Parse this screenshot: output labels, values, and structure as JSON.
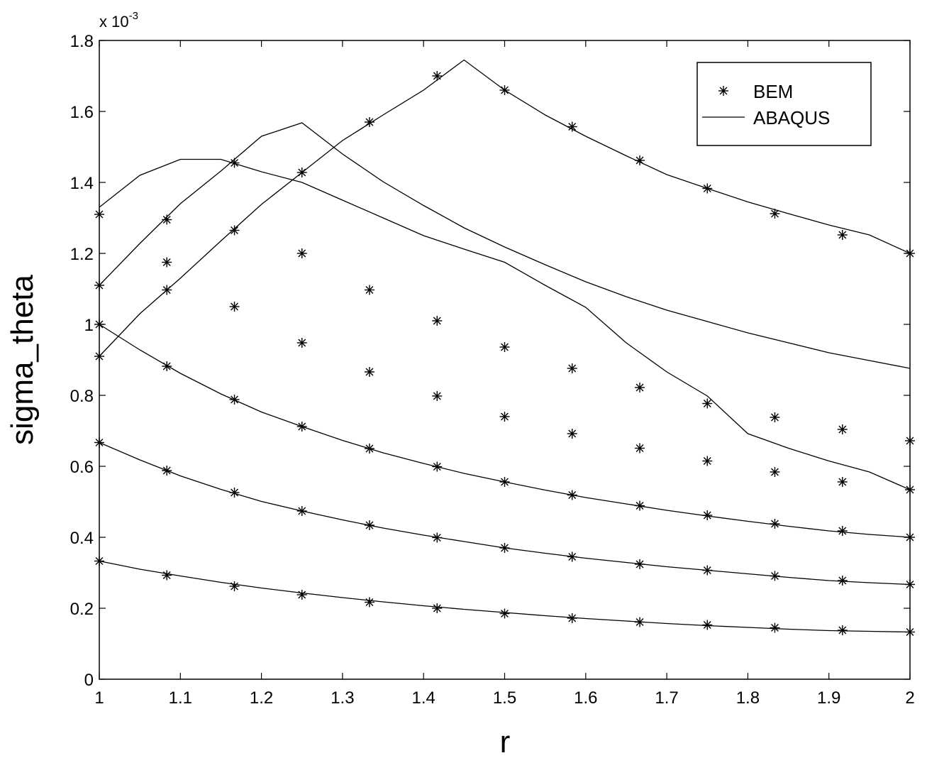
{
  "chart_data": {
    "type": "line",
    "xlabel": "r",
    "ylabel": "sigma_theta",
    "y_exponent_label": "x 10",
    "y_exponent_power": "-3",
    "xlim": [
      1,
      2
    ],
    "ylim": [
      0,
      1.8
    ],
    "x_ticks": [
      1,
      1.1,
      1.2,
      1.3,
      1.4,
      1.5,
      1.6,
      1.7,
      1.8,
      1.9,
      2
    ],
    "x_tick_labels": [
      "1",
      "1.1",
      "1.2",
      "1.3",
      "1.4",
      "1.5",
      "1.6",
      "1.7",
      "1.8",
      "1.9",
      "2"
    ],
    "y_ticks": [
      0,
      0.2,
      0.4,
      0.6,
      0.8,
      1,
      1.2,
      1.4,
      1.6,
      1.8
    ],
    "y_tick_labels": [
      "0",
      "0.2",
      "0.4",
      "0.6",
      "0.8",
      "1",
      "1.2",
      "1.4",
      "1.6",
      "1.8"
    ],
    "grid": false,
    "legend": {
      "position": "top-right",
      "entries": [
        {
          "label": "BEM",
          "style": "asterisk-marker"
        },
        {
          "label": "ABAQUS",
          "style": "solid-line"
        }
      ]
    },
    "bem_x": [
      1,
      1.0833,
      1.1667,
      1.25,
      1.3333,
      1.4167,
      1.5,
      1.5833,
      1.6667,
      1.75,
      1.8333,
      1.9167,
      2
    ],
    "curves": [
      {
        "bem": [
          0.333,
          0.293,
          0.262,
          0.238,
          0.217,
          0.2,
          0.185,
          0.172,
          0.161,
          0.153,
          0.145,
          0.138,
          0.133
        ],
        "abaqus": {
          "x": [
            1,
            1.05,
            1.1,
            1.15,
            1.2,
            1.25,
            1.3,
            1.35,
            1.4,
            1.45,
            1.5,
            1.55,
            1.6,
            1.65,
            1.7,
            1.75,
            1.8,
            1.85,
            1.9,
            1.95,
            2
          ],
          "y": [
            0.333,
            0.31,
            0.291,
            0.273,
            0.257,
            0.243,
            0.23,
            0.218,
            0.207,
            0.197,
            0.188,
            0.179,
            0.171,
            0.164,
            0.157,
            0.151,
            0.146,
            0.141,
            0.137,
            0.135,
            0.133
          ]
        }
      },
      {
        "bem": [
          0.667,
          0.588,
          0.526,
          0.474,
          0.434,
          0.399,
          0.37,
          0.345,
          0.324,
          0.307,
          0.291,
          0.278,
          0.267
        ],
        "abaqus": {
          "x": [
            1,
            1.05,
            1.1,
            1.15,
            1.2,
            1.25,
            1.3,
            1.35,
            1.4,
            1.45,
            1.5,
            1.55,
            1.6,
            1.65,
            1.7,
            1.75,
            1.8,
            1.85,
            1.9,
            1.95,
            2
          ],
          "y": [
            0.667,
            0.618,
            0.573,
            0.535,
            0.501,
            0.474,
            0.449,
            0.426,
            0.406,
            0.388,
            0.37,
            0.355,
            0.341,
            0.329,
            0.317,
            0.307,
            0.297,
            0.287,
            0.278,
            0.272,
            0.267
          ]
        }
      },
      {
        "bem": [
          1.0,
          0.882,
          0.788,
          0.712,
          0.65,
          0.599,
          0.556,
          0.519,
          0.489,
          0.462,
          0.438,
          0.418,
          0.4
        ],
        "abaqus": {
          "x": [
            1,
            1.05,
            1.1,
            1.15,
            1.2,
            1.25,
            1.3,
            1.35,
            1.4,
            1.45,
            1.5,
            1.55,
            1.6,
            1.65,
            1.7,
            1.75,
            1.8,
            1.85,
            1.9,
            1.95,
            2
          ],
          "y": [
            1.0,
            0.928,
            0.862,
            0.804,
            0.753,
            0.712,
            0.673,
            0.638,
            0.608,
            0.58,
            0.556,
            0.533,
            0.512,
            0.494,
            0.476,
            0.46,
            0.445,
            0.431,
            0.418,
            0.408,
            0.4
          ]
        }
      },
      {
        "bem": [
          1.31,
          1.175,
          1.05,
          0.948,
          0.866,
          0.798,
          0.74,
          0.692,
          0.651,
          0.615,
          0.584,
          0.556,
          0.534
        ],
        "abaqus": {
          "x": [
            1,
            1.05,
            1.1,
            1.15,
            1.2,
            1.25,
            1.3,
            1.35,
            1.4,
            1.45,
            1.5,
            1.55,
            1.6,
            1.65,
            1.7,
            1.75,
            1.8,
            1.85,
            1.9,
            1.95,
            2
          ],
          "y": [
            1.33,
            1.42,
            1.465,
            1.465,
            1.43,
            1.4,
            1.35,
            1.3,
            1.25,
            1.212,
            1.175,
            1.11,
            1.048,
            0.948,
            0.866,
            0.798,
            0.692,
            0.651,
            0.615,
            0.584,
            0.534
          ]
        }
      },
      {
        "bem": [
          1.11,
          1.295,
          1.455,
          1.2,
          1.097,
          1.01,
          0.936,
          0.876,
          0.822,
          0.777,
          0.738,
          0.704,
          0.672
        ],
        "abaqus": {
          "x": [
            1,
            1.05,
            1.1,
            1.15,
            1.2,
            1.25,
            1.3,
            1.35,
            1.4,
            1.45,
            1.5,
            1.55,
            1.6,
            1.65,
            1.7,
            1.75,
            1.8,
            1.85,
            1.9,
            1.95,
            2
          ],
          "y": [
            1.11,
            1.228,
            1.34,
            1.432,
            1.53,
            1.568,
            1.48,
            1.402,
            1.335,
            1.272,
            1.218,
            1.168,
            1.12,
            1.078,
            1.04,
            1.008,
            0.976,
            0.948,
            0.92,
            0.898,
            0.876
          ]
        }
      },
      {
        "bem": [
          0.91,
          1.097,
          1.265,
          1.428,
          1.57,
          1.7,
          1.66,
          1.557,
          1.462,
          1.383,
          1.312,
          1.252,
          1.2
        ],
        "abaqus": {
          "x": [
            1,
            1.05,
            1.1,
            1.15,
            1.2,
            1.25,
            1.3,
            1.35,
            1.4,
            1.45,
            1.5,
            1.55,
            1.6,
            1.65,
            1.7,
            1.75,
            1.8,
            1.85,
            1.9,
            1.95,
            2
          ],
          "y": [
            0.91,
            1.03,
            1.13,
            1.235,
            1.338,
            1.428,
            1.518,
            1.59,
            1.66,
            1.745,
            1.66,
            1.59,
            1.53,
            1.475,
            1.422,
            1.383,
            1.345,
            1.312,
            1.28,
            1.252,
            1.2
          ]
        }
      }
    ]
  }
}
